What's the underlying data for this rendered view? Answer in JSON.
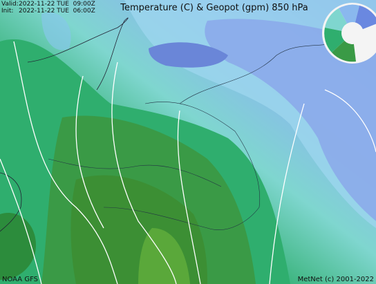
{
  "header": {
    "valid_label": "Valid:",
    "valid_time": "2022-11-22 TUE  09:00Z",
    "init_label": "Init:",
    "init_time": "2022-11-22 TUE  06:00Z",
    "title": "Temperature (C) & Geopot (gpm) 850 hPa"
  },
  "footer": {
    "model": "NOAA GFS",
    "credit": "MetNet (c) 2001-2022"
  }
}
